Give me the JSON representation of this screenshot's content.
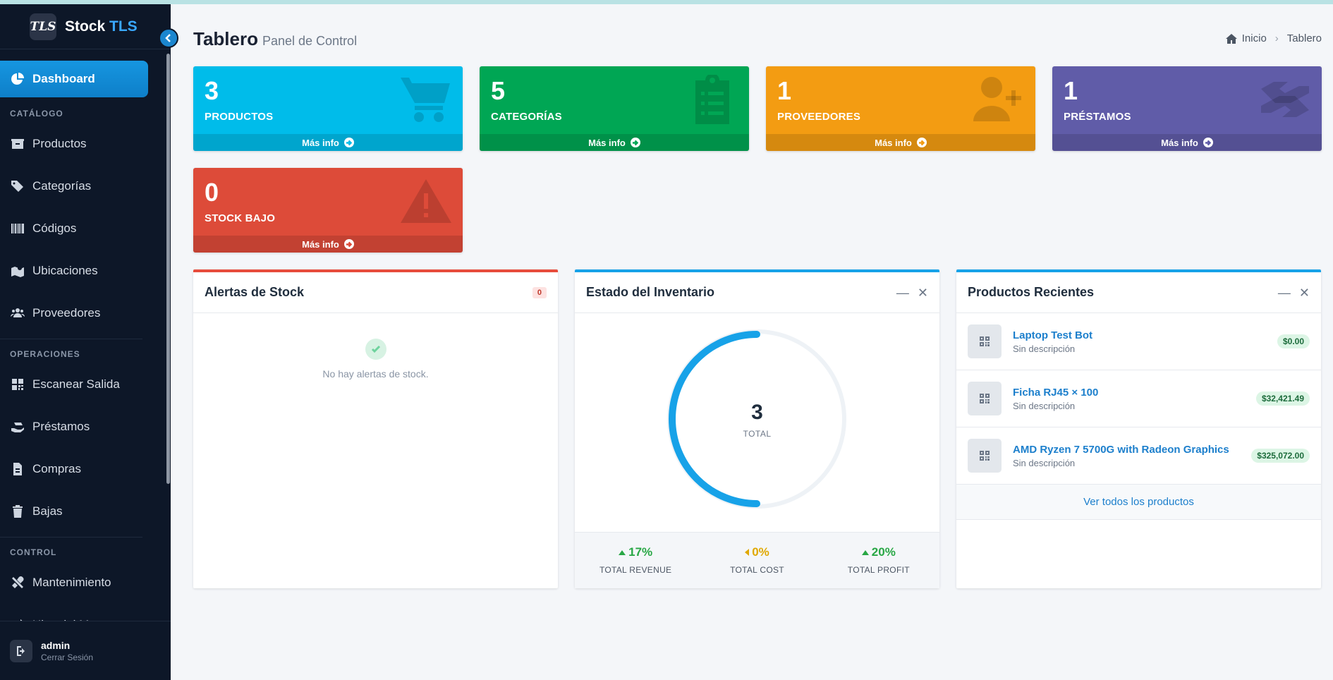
{
  "brand": {
    "logo": "TLS",
    "name": "Stock",
    "accent": "TLS"
  },
  "sidebar": {
    "active": {
      "label": "Dashboard",
      "icon": "chart-pie-icon"
    },
    "sections": [
      {
        "header": "CATÁLOGO",
        "items": [
          {
            "label": "Productos",
            "icon": "box-icon"
          },
          {
            "label": "Categorías",
            "icon": "tags-icon"
          },
          {
            "label": "Códigos",
            "icon": "barcode-icon"
          },
          {
            "label": "Ubicaciones",
            "icon": "map-location-icon"
          },
          {
            "label": "Proveedores",
            "icon": "users-icon"
          }
        ]
      },
      {
        "header": "OPERACIONES",
        "items": [
          {
            "label": "Escanear Salida",
            "icon": "qrcode-icon"
          },
          {
            "label": "Préstamos",
            "icon": "hand-holding-icon"
          },
          {
            "label": "Compras",
            "icon": "invoice-icon"
          },
          {
            "label": "Bajas",
            "icon": "trash-icon"
          }
        ]
      },
      {
        "header": "CONTROL",
        "items": [
          {
            "label": "Mantenimiento",
            "icon": "tools-icon"
          },
          {
            "label": "Historial Mov.",
            "icon": "exchange-icon"
          }
        ]
      }
    ],
    "footer": {
      "user": "admin",
      "logout": "Cerrar Sesión"
    }
  },
  "header": {
    "title": "Tablero",
    "subtitle": "Panel de Control"
  },
  "breadcrumb": {
    "home": "Inicio",
    "current": "Tablero"
  },
  "stat_boxes": [
    {
      "value": "3",
      "label": "PRODUCTOS",
      "footer": "Más info",
      "color": "#00bcea",
      "icon": "cart-icon"
    },
    {
      "value": "5",
      "label": "CATEGORÍAS",
      "footer": "Más info",
      "color": "#00a654",
      "icon": "clipboard-list-icon"
    },
    {
      "value": "1",
      "label": "PROVEEDORES",
      "footer": "Más info",
      "color": "#f39c12",
      "icon": "user-plus-icon"
    },
    {
      "value": "1",
      "label": "PRÉSTAMOS",
      "footer": "Más info",
      "color": "#605ca8",
      "icon": "handshake-icon"
    },
    {
      "value": "0",
      "label": "STOCK BAJO",
      "footer": "Más info",
      "color": "#dd4b39",
      "icon": "warning-icon"
    }
  ],
  "alerts_card": {
    "title": "Alertas de Stock",
    "badge": "0",
    "empty": "No hay alertas de stock."
  },
  "inventory_card": {
    "title": "Estado del Inventario",
    "total": "3",
    "total_label": "TOTAL",
    "fraction": 0.5,
    "stats": [
      {
        "pct": "17%",
        "label": "TOTAL REVENUE",
        "trend": "up"
      },
      {
        "pct": "0%",
        "label": "TOTAL COST",
        "trend": "mid"
      },
      {
        "pct": "20%",
        "label": "TOTAL PROFIT",
        "trend": "up"
      }
    ]
  },
  "recent_card": {
    "title": "Productos Recientes",
    "items": [
      {
        "name": "Laptop Test Bot",
        "desc": "Sin descripción",
        "price": "$0.00"
      },
      {
        "name": "Ficha RJ45 × 100",
        "desc": "Sin descripción",
        "price": "$32,421.49"
      },
      {
        "name": "AMD Ryzen 7 5700G with Radeon Graphics",
        "desc": "Sin descripción",
        "price": "$325,072.00"
      }
    ],
    "footer_link": "Ver todos los productos"
  }
}
